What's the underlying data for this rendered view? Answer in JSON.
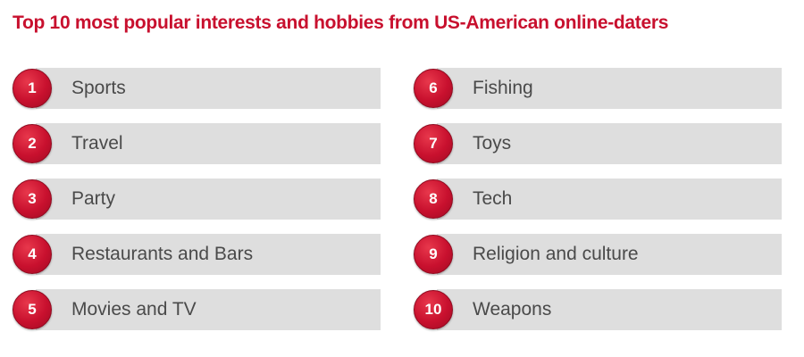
{
  "title": "Top 10 most popular interests and hobbies from US-American online-daters",
  "colors": {
    "accent": "#c8102e",
    "bar": "#dedede",
    "label_text": "#4a4a4a"
  },
  "items": [
    {
      "rank": "1",
      "label": "Sports"
    },
    {
      "rank": "2",
      "label": "Travel"
    },
    {
      "rank": "3",
      "label": "Party"
    },
    {
      "rank": "4",
      "label": "Restaurants and Bars"
    },
    {
      "rank": "5",
      "label": "Movies and TV"
    },
    {
      "rank": "6",
      "label": "Fishing"
    },
    {
      "rank": "7",
      "label": "Toys"
    },
    {
      "rank": "8",
      "label": "Tech"
    },
    {
      "rank": "9",
      "label": "Religion and culture"
    },
    {
      "rank": "10",
      "label": "Weapons"
    }
  ]
}
